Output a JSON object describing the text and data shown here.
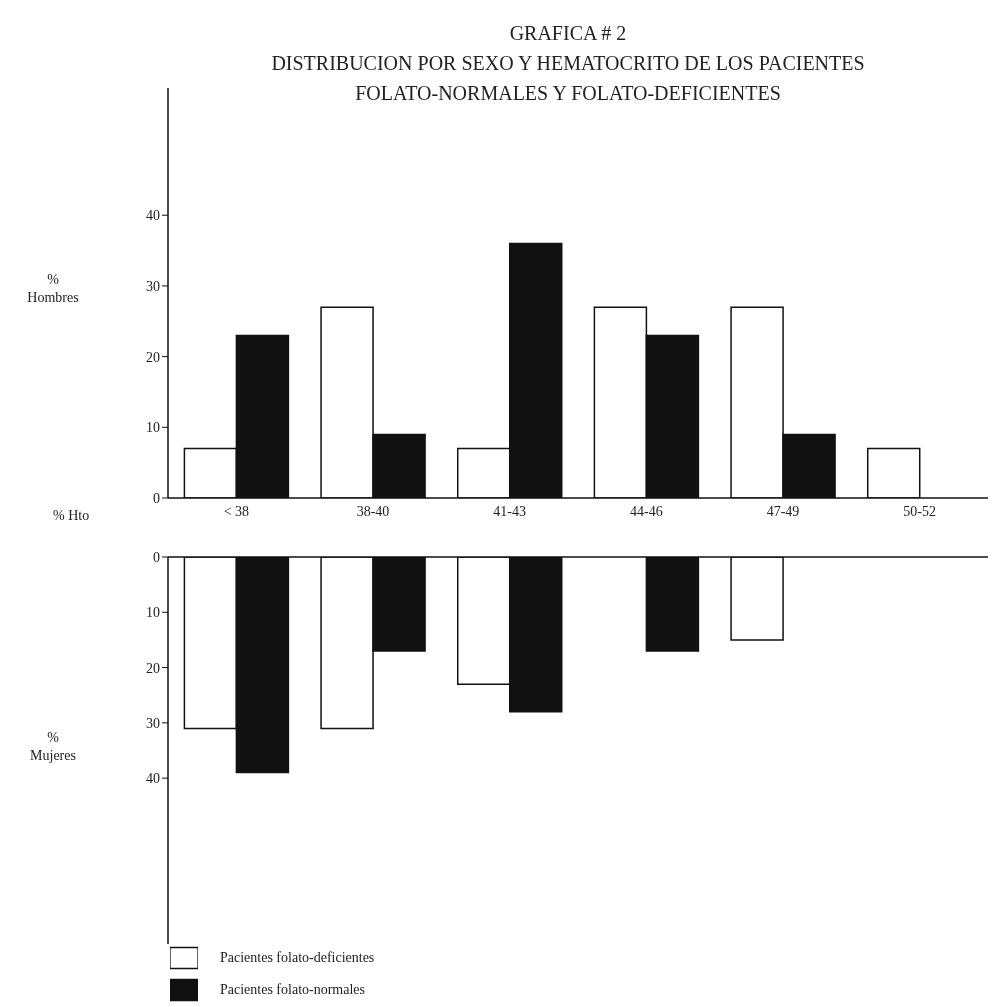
{
  "chart_data": [
    {
      "type": "bar",
      "title": "GRAFICA # 2",
      "subtitle": "DISTRIBUCION POR SEXO Y HEMATOCRITO DE LOS PACIENTES FOLATO-NORMALES Y FOLATO-DEFICIENTES",
      "xlabel": "% Hto",
      "ylabel": "% Hombres",
      "categories": [
        "< 38",
        "38-40",
        "41-43",
        "44-46",
        "47-49",
        "50-52"
      ],
      "series": [
        {
          "color": "#ffffff",
          "values": [
            7,
            27,
            7,
            27,
            27,
            7
          ]
        },
        {
          "color": "#111111",
          "values": [
            23,
            9,
            36,
            23,
            9,
            0
          ]
        }
      ],
      "ylim": [
        0,
        58
      ],
      "yticks": [
        0,
        10,
        20,
        30,
        40
      ]
    },
    {
      "type": "bar",
      "ylabel": "% Mujeres",
      "tick_labels": "y",
      "legend": "bottom left",
      "categories": [
        null,
        null,
        null,
        null,
        null,
        null
      ],
      "series": [
        {
          "name": "Pacientes folato-deficientes",
          "color": "#ffffff",
          "values": [
            31,
            31,
            23,
            0,
            15,
            0
          ]
        },
        {
          "name": "Pacientes folato-normales",
          "color": "#111111",
          "values": [
            39,
            17,
            28,
            17,
            0,
            0
          ]
        }
      ],
      "ylim": [
        70,
        0
      ],
      "yticks": [
        0,
        10,
        20,
        30,
        40
      ]
    }
  ]
}
